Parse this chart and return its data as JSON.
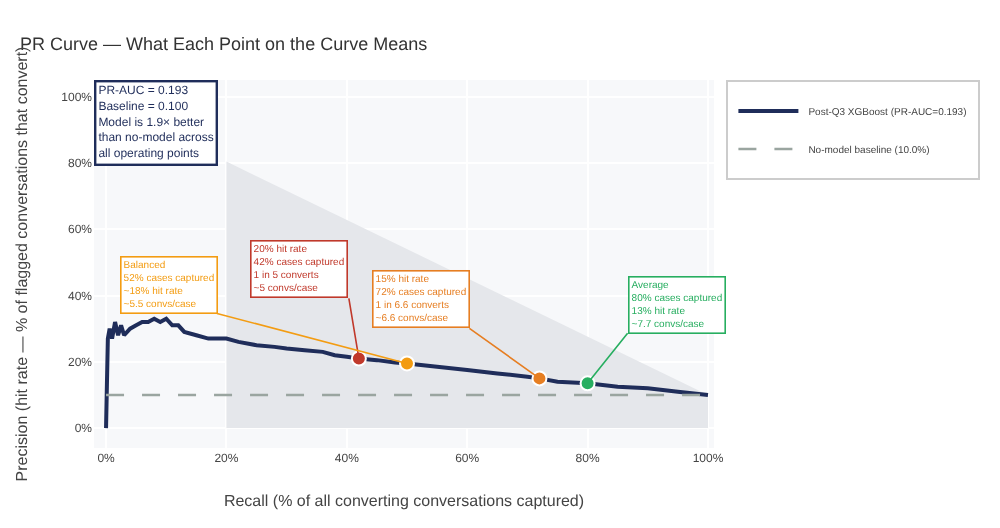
{
  "chart_data": {
    "type": "line",
    "title": "PR Curve — What Each Point on the Curve Means",
    "xlabel": "Recall (% of all converting conversations captured)",
    "ylabel": "Precision (hit rate — % of flagged conversations that convert)",
    "xlim": [
      -2,
      101
    ],
    "ylim": [
      -6,
      105
    ],
    "xticks": [
      {
        "value": 0,
        "label": "0%"
      },
      {
        "value": 20,
        "label": "20%"
      },
      {
        "value": 40,
        "label": "40%"
      },
      {
        "value": 60,
        "label": "60%"
      },
      {
        "value": 80,
        "label": "80%"
      },
      {
        "value": 100,
        "label": "100%"
      }
    ],
    "yticks": [
      {
        "value": 0,
        "label": "0%"
      },
      {
        "value": 20,
        "label": "20%"
      },
      {
        "value": 40,
        "label": "40%"
      },
      {
        "value": 60,
        "label": "60%"
      },
      {
        "value": 80,
        "label": "80%"
      },
      {
        "value": 100,
        "label": "100%"
      }
    ],
    "grid": true,
    "legend": "top right",
    "marker": "none",
    "series": [
      {
        "type": "area",
        "color": "#e5e7eb",
        "x": [
          20,
          100
        ],
        "values": [
          80.4,
          10
        ]
      },
      {
        "name": "Post-Q3 XGBoost (PR-AUC=0.193)",
        "color": "#1f2d5a",
        "line_style": "solid",
        "x": [
          0,
          0.3,
          0.6,
          1,
          1.5,
          2,
          2.5,
          3,
          4,
          5,
          6,
          7,
          8,
          9,
          10,
          11,
          12,
          13,
          15,
          17,
          20,
          22,
          25,
          28,
          30,
          33,
          36,
          38,
          40,
          42,
          45,
          48,
          50,
          55,
          60,
          65,
          70,
          72,
          75,
          80,
          85,
          90,
          95,
          100
        ],
        "values": [
          0,
          27,
          30,
          27,
          32,
          28,
          31,
          28,
          30,
          31,
          32,
          32,
          33,
          32,
          33,
          31,
          31,
          29,
          28,
          27,
          27,
          26,
          25,
          24.5,
          24,
          23.5,
          23,
          22,
          21.5,
          21,
          20.5,
          19.8,
          19.5,
          18.5,
          17.5,
          16.5,
          15.5,
          15,
          14,
          13.5,
          12.5,
          12,
          11,
          10
        ]
      },
      {
        "name": "No-model baseline (10.0%)",
        "color": "#9aa5a0",
        "line_style": "dashed",
        "x": [
          0,
          100
        ],
        "values": [
          10,
          10
        ]
      },
      {
        "type": "scatter",
        "marker": "circle",
        "x": [
          42,
          50,
          72,
          80
        ],
        "values": [
          21,
          19.5,
          15,
          13.5
        ],
        "colors": [
          "#c0392b",
          "#f39c12",
          "#e67e22",
          "#27ae60"
        ]
      }
    ],
    "annotations": [
      "PR-AUC = 0.193\nBaseline = 0.100\nModel is 1.9× better\nthan no-model across\nall operating points",
      {
        "text": "20% hit rate\n42% cases captured\n1 in 5 converts\n~5 convs/case",
        "x": 42,
        "y": 21
      },
      {
        "text": "Balanced\n52% cases captured\n~18% hit rate\n~5.5 convs/case",
        "x": 50,
        "y": 19.5
      },
      {
        "text": "15% hit rate\n72% cases captured\n1 in 6.6 converts\n~6.6 convs/case",
        "x": 72,
        "y": 15
      },
      {
        "text": "Average\n80% cases captured\n13% hit rate\n~7.7 convs/case",
        "x": 80,
        "y": 13.5
      }
    ]
  }
}
